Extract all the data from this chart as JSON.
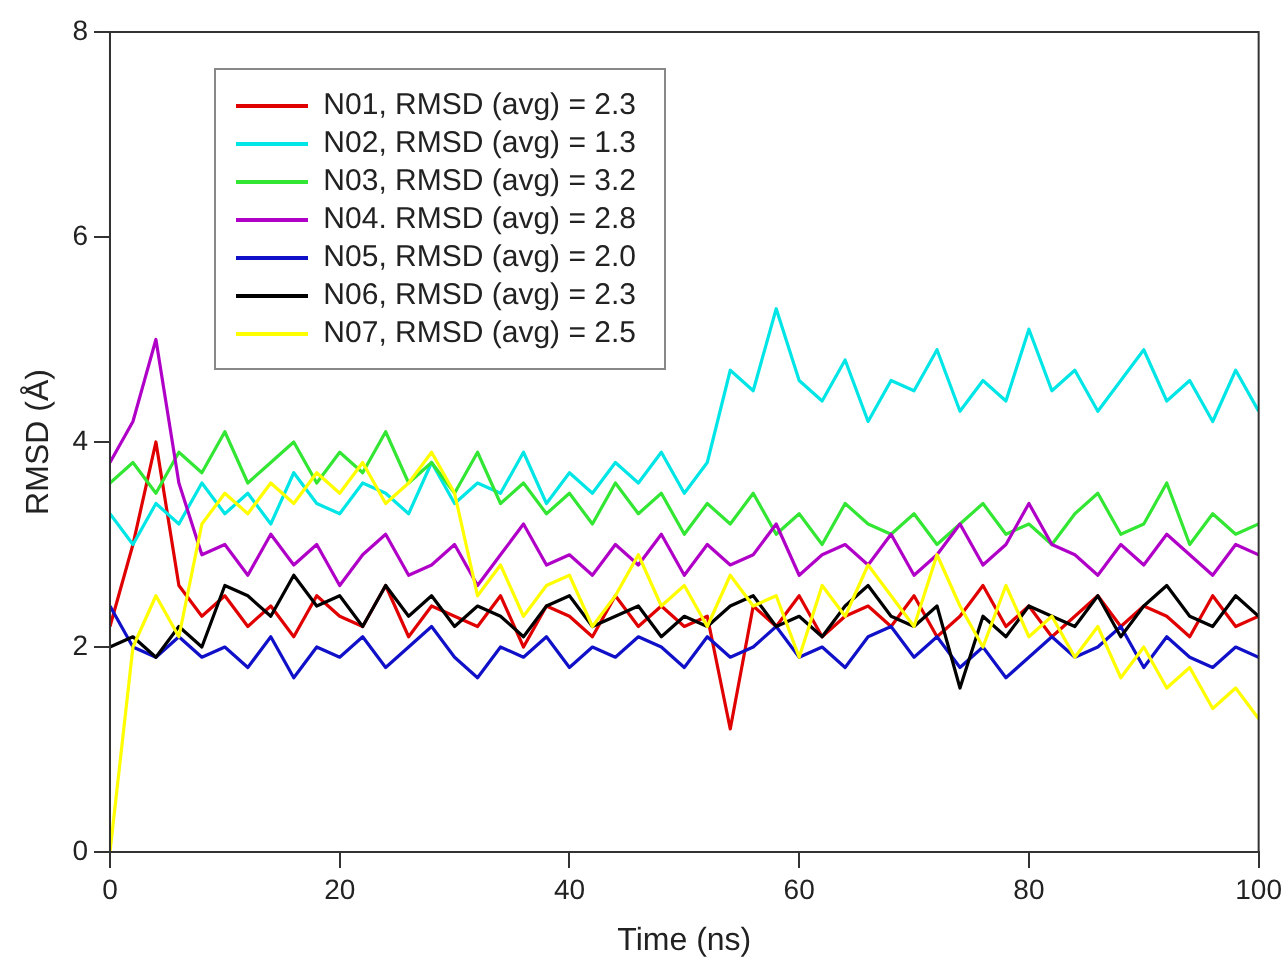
{
  "chart_data": {
    "type": "line",
    "xlabel": "Time (ns)",
    "ylabel": "RMSD (Å)",
    "x": [
      0,
      2,
      4,
      6,
      8,
      10,
      12,
      14,
      16,
      18,
      20,
      22,
      24,
      26,
      28,
      30,
      32,
      34,
      36,
      38,
      40,
      42,
      44,
      46,
      48,
      50,
      52,
      54,
      56,
      58,
      60,
      62,
      64,
      66,
      68,
      70,
      72,
      74,
      76,
      78,
      80,
      82,
      84,
      86,
      88,
      90,
      92,
      94,
      96,
      98,
      100
    ],
    "xlim": [
      0,
      100
    ],
    "xticks": [
      0,
      20,
      40,
      60,
      80,
      100
    ],
    "ylim": [
      0,
      8
    ],
    "yticks": [
      0,
      2,
      4,
      6,
      8
    ],
    "legend": "top left",
    "marker": "none",
    "line_style": "solid",
    "series": [
      {
        "name": "N01, RMSD (avg) = 2.3",
        "color": "#e00000",
        "values": [
          2.2,
          3.0,
          4.0,
          2.6,
          2.3,
          2.5,
          2.2,
          2.4,
          2.1,
          2.5,
          2.3,
          2.2,
          2.6,
          2.1,
          2.4,
          2.3,
          2.2,
          2.5,
          2.0,
          2.4,
          2.3,
          2.1,
          2.5,
          2.2,
          2.4,
          2.2,
          2.3,
          1.2,
          2.4,
          2.2,
          2.5,
          2.1,
          2.3,
          2.4,
          2.2,
          2.5,
          2.1,
          2.3,
          2.6,
          2.2,
          2.4,
          2.1,
          2.3,
          2.5,
          2.2,
          2.4,
          2.3,
          2.1,
          2.5,
          2.2,
          2.3
        ]
      },
      {
        "name": "N02, RMSD (avg) = 1.3",
        "color": "#00e5e5",
        "values": [
          3.3,
          3.0,
          3.4,
          3.2,
          3.6,
          3.3,
          3.5,
          3.2,
          3.7,
          3.4,
          3.3,
          3.6,
          3.5,
          3.3,
          3.8,
          3.4,
          3.6,
          3.5,
          3.9,
          3.4,
          3.7,
          3.5,
          3.8,
          3.6,
          3.9,
          3.5,
          3.8,
          4.7,
          4.5,
          5.3,
          4.6,
          4.4,
          4.8,
          4.2,
          4.6,
          4.5,
          4.9,
          4.3,
          4.6,
          4.4,
          5.1,
          4.5,
          4.7,
          4.3,
          4.6,
          4.9,
          4.4,
          4.6,
          4.2,
          4.7,
          4.3
        ]
      },
      {
        "name": "N03, RMSD (avg) = 3.2",
        "color": "#33e633",
        "values": [
          3.6,
          3.8,
          3.5,
          3.9,
          3.7,
          4.1,
          3.6,
          3.8,
          4.0,
          3.6,
          3.9,
          3.7,
          4.1,
          3.6,
          3.8,
          3.5,
          3.9,
          3.4,
          3.6,
          3.3,
          3.5,
          3.2,
          3.6,
          3.3,
          3.5,
          3.1,
          3.4,
          3.2,
          3.5,
          3.1,
          3.3,
          3.0,
          3.4,
          3.2,
          3.1,
          3.3,
          3.0,
          3.2,
          3.4,
          3.1,
          3.2,
          3.0,
          3.3,
          3.5,
          3.1,
          3.2,
          3.6,
          3.0,
          3.3,
          3.1,
          3.2
        ]
      },
      {
        "name": "N04. RMSD (avg) = 2.8",
        "color": "#b000c8",
        "values": [
          3.8,
          4.2,
          5.0,
          3.6,
          2.9,
          3.0,
          2.7,
          3.1,
          2.8,
          3.0,
          2.6,
          2.9,
          3.1,
          2.7,
          2.8,
          3.0,
          2.6,
          2.9,
          3.2,
          2.8,
          2.9,
          2.7,
          3.0,
          2.8,
          3.1,
          2.7,
          3.0,
          2.8,
          2.9,
          3.2,
          2.7,
          2.9,
          3.0,
          2.8,
          3.1,
          2.7,
          2.9,
          3.2,
          2.8,
          3.0,
          3.4,
          3.0,
          2.9,
          2.7,
          3.0,
          2.8,
          3.1,
          2.9,
          2.7,
          3.0,
          2.9
        ]
      },
      {
        "name": "N05, RMSD (avg) = 2.0",
        "color": "#1010c8",
        "values": [
          2.4,
          2.0,
          1.9,
          2.1,
          1.9,
          2.0,
          1.8,
          2.1,
          1.7,
          2.0,
          1.9,
          2.1,
          1.8,
          2.0,
          2.2,
          1.9,
          1.7,
          2.0,
          1.9,
          2.1,
          1.8,
          2.0,
          1.9,
          2.1,
          2.0,
          1.8,
          2.1,
          1.9,
          2.0,
          2.2,
          1.9,
          2.0,
          1.8,
          2.1,
          2.2,
          1.9,
          2.1,
          1.8,
          2.0,
          1.7,
          1.9,
          2.1,
          1.9,
          2.0,
          2.2,
          1.8,
          2.1,
          1.9,
          1.8,
          2.0,
          1.9
        ]
      },
      {
        "name": "N06, RMSD (avg) = 2.3",
        "color": "#000000",
        "values": [
          2.0,
          2.1,
          1.9,
          2.2,
          2.0,
          2.6,
          2.5,
          2.3,
          2.7,
          2.4,
          2.5,
          2.2,
          2.6,
          2.3,
          2.5,
          2.2,
          2.4,
          2.3,
          2.1,
          2.4,
          2.5,
          2.2,
          2.3,
          2.4,
          2.1,
          2.3,
          2.2,
          2.4,
          2.5,
          2.2,
          2.3,
          2.1,
          2.4,
          2.6,
          2.3,
          2.2,
          2.4,
          1.6,
          2.3,
          2.1,
          2.4,
          2.3,
          2.2,
          2.5,
          2.1,
          2.4,
          2.6,
          2.3,
          2.2,
          2.5,
          2.3
        ]
      },
      {
        "name": "N07, RMSD (avg) = 2.5",
        "color": "#ffff00",
        "values": [
          0,
          2.0,
          2.5,
          2.1,
          3.2,
          3.5,
          3.3,
          3.6,
          3.4,
          3.7,
          3.5,
          3.8,
          3.4,
          3.6,
          3.9,
          3.5,
          2.5,
          2.8,
          2.3,
          2.6,
          2.7,
          2.2,
          2.5,
          2.9,
          2.4,
          2.6,
          2.2,
          2.7,
          2.4,
          2.5,
          1.9,
          2.6,
          2.3,
          2.8,
          2.5,
          2.2,
          2.9,
          2.4,
          2.0,
          2.6,
          2.1,
          2.3,
          1.9,
          2.2,
          1.7,
          2.0,
          1.6,
          1.8,
          1.4,
          1.6,
          1.3
        ]
      }
    ]
  }
}
